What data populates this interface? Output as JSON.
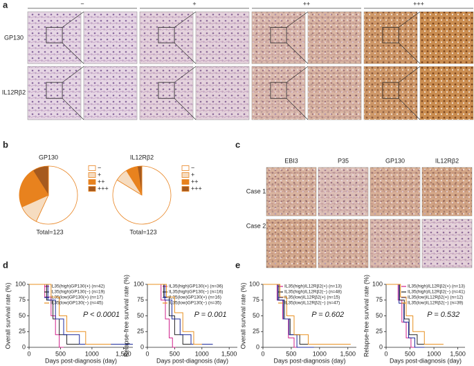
{
  "panel_labels": [
    "a",
    "b",
    "c",
    "d",
    "e"
  ],
  "panel_a": {
    "columns": [
      "−",
      "+",
      "++",
      "+++"
    ],
    "rows": [
      "GP130",
      "IL12Rβ2"
    ]
  },
  "panel_c": {
    "columns": [
      "EBI3",
      "P35",
      "GP130",
      "IL12Rβ2"
    ],
    "rows": [
      "Case 1",
      "Case 2"
    ]
  },
  "chart_data": [
    {
      "type": "pie",
      "title": "GP130",
      "categories": [
        "−",
        "+",
        "++",
        "+++"
      ],
      "values": [
        70,
        14,
        28,
        11
      ],
      "colors": [
        "#ffffff",
        "#f6dcc0",
        "#e8821e",
        "#a65a1e"
      ],
      "annotation": "Total=123",
      "legend": "right"
    },
    {
      "type": "pie",
      "title": "IL12Rβ2",
      "categories": [
        "−",
        "+",
        "++",
        "+++"
      ],
      "values": [
        103,
        9,
        8,
        3
      ],
      "colors": [
        "#ffffff",
        "#f6dcc0",
        "#e8821e",
        "#a65a1e"
      ],
      "annotation": "Total=123",
      "legend": "right"
    },
    {
      "type": "line",
      "ylabel": "Overall survival rate (%)",
      "xlabel": "Days post-diagnosis (day)",
      "annotation": "P < 0.0001",
      "xlim": [
        0,
        1650
      ],
      "xticks": [
        0,
        500,
        1000,
        {
          "value": 1500,
          "label": "1,500"
        }
      ],
      "ylim": [
        0,
        100
      ],
      "yticks": [
        0,
        25,
        50,
        75,
        100
      ],
      "legend": "upper right",
      "series": [
        {
          "name": "IL35(high)GP130(+) (n=42)",
          "color": "#d0208a",
          "x": [
            0,
            250,
            250,
            350,
            350,
            420,
            420,
            480,
            480,
            550
          ],
          "values": [
            100,
            100,
            80,
            80,
            50,
            50,
            20,
            20,
            0,
            0
          ]
        },
        {
          "name": "IL35(high)GP130(−) (n=19)",
          "color": "#222222",
          "x": [
            0,
            280,
            280,
            380,
            380,
            480,
            480,
            600,
            600,
            800
          ],
          "values": [
            100,
            100,
            75,
            75,
            45,
            45,
            20,
            20,
            5,
            5
          ]
        },
        {
          "name": "IL35(low)GP130(+) (n=17)",
          "color": "#1c2a9c",
          "x": [
            0,
            300,
            300,
            420,
            420,
            550,
            550,
            800,
            800,
            1650
          ],
          "values": [
            100,
            100,
            75,
            75,
            45,
            45,
            20,
            20,
            5,
            5
          ]
        },
        {
          "name": "IL35(low)GP130(−) (n=45)",
          "color": "#e89020",
          "x": [
            0,
            350,
            350,
            480,
            480,
            600,
            600,
            900,
            900,
            1300
          ],
          "values": [
            100,
            100,
            80,
            80,
            50,
            50,
            25,
            25,
            5,
            5
          ]
        }
      ]
    },
    {
      "type": "line",
      "ylabel": "Relapse-free survival rate (%)",
      "xlabel": "Days post-diagnosis (day)",
      "annotation": "P = 0.001",
      "xlim": [
        0,
        1650
      ],
      "xticks": [
        0,
        500,
        1000,
        {
          "value": 1500,
          "label": "1,500"
        }
      ],
      "ylim": [
        0,
        100
      ],
      "yticks": [
        0,
        25,
        50,
        75,
        100
      ],
      "legend": "upper right",
      "series": [
        {
          "name": "IL35(high)GP130(+) (n=36)",
          "color": "#d0208a",
          "x": [
            0,
            250,
            250,
            330,
            330,
            400,
            400,
            460,
            460,
            520
          ],
          "values": [
            100,
            100,
            75,
            75,
            45,
            45,
            15,
            15,
            0,
            0
          ]
        },
        {
          "name": "IL35(high)GP130(−) (n=16)",
          "color": "#222222",
          "x": [
            0,
            300,
            300,
            400,
            400,
            500,
            500,
            650,
            650,
            900
          ],
          "values": [
            100,
            100,
            80,
            80,
            50,
            50,
            20,
            20,
            5,
            5
          ]
        },
        {
          "name": "IL35(low)GP130(+) (n=16)",
          "color": "#1c2a9c",
          "x": [
            0,
            320,
            320,
            450,
            450,
            600,
            600,
            800,
            800,
            1200
          ],
          "values": [
            100,
            100,
            75,
            75,
            45,
            45,
            20,
            20,
            5,
            5
          ]
        },
        {
          "name": "IL35(low)GP130(−) (n=35)",
          "color": "#e89020",
          "x": [
            0,
            350,
            350,
            500,
            500,
            650,
            650,
            850,
            850,
            1000
          ],
          "values": [
            100,
            100,
            80,
            80,
            55,
            55,
            25,
            25,
            5,
            5
          ]
        }
      ]
    },
    {
      "type": "line",
      "ylabel": "Overall survival rate (%)",
      "xlabel": "Days post-diagnosis (day)",
      "annotation": "P = 0.602",
      "xlim": [
        0,
        1650
      ],
      "xticks": [
        0,
        500,
        1000,
        {
          "value": 1500,
          "label": "1,500"
        }
      ],
      "ylim": [
        0,
        100
      ],
      "yticks": [
        0,
        25,
        50,
        75,
        100
      ],
      "legend": "upper right",
      "series": [
        {
          "name": "IL35(high)IL12Rβ2(+) (n=13)",
          "color": "#d0208a",
          "x": [
            0,
            250,
            250,
            350,
            350,
            450,
            450,
            550,
            550,
            700
          ],
          "values": [
            100,
            100,
            75,
            75,
            45,
            45,
            15,
            15,
            0,
            0
          ]
        },
        {
          "name": "IL35(high)IL12Rβ2(−) (n=48)",
          "color": "#222222",
          "x": [
            0,
            280,
            280,
            380,
            380,
            480,
            480,
            650,
            650,
            1000
          ],
          "values": [
            100,
            100,
            75,
            75,
            45,
            45,
            20,
            20,
            5,
            5
          ]
        },
        {
          "name": "IL35(low)IL12Rβ2(+) (n=15)",
          "color": "#1c2a9c",
          "x": [
            0,
            260,
            260,
            360,
            360,
            460,
            460,
            600,
            600,
            900
          ],
          "values": [
            100,
            100,
            75,
            75,
            45,
            45,
            20,
            20,
            0,
            0
          ]
        },
        {
          "name": "IL35(low)IL12Rβ2(−) (n=47)",
          "color": "#e89020",
          "x": [
            0,
            300,
            300,
            420,
            420,
            550,
            550,
            800,
            800,
            1550
          ],
          "values": [
            100,
            100,
            80,
            80,
            50,
            50,
            20,
            20,
            5,
            5
          ]
        }
      ]
    },
    {
      "type": "line",
      "ylabel": "Relapse-free survival rate (%)",
      "xlabel": "Days post-diagnosis (day)",
      "annotation": "P = 0.532",
      "xlim": [
        0,
        1650
      ],
      "xticks": [
        0,
        500,
        1000,
        {
          "value": 1500,
          "label": "1,500"
        }
      ],
      "ylim": [
        0,
        100
      ],
      "yticks": [
        0,
        25,
        50,
        75,
        100
      ],
      "legend": "upper right",
      "series": [
        {
          "name": "IL35(high)IL12Rβ2(+) (n=13)",
          "color": "#d0208a",
          "x": [
            0,
            250,
            250,
            330,
            330,
            420,
            420,
            520,
            520,
            650
          ],
          "values": [
            100,
            100,
            75,
            75,
            40,
            40,
            15,
            15,
            0,
            0
          ]
        },
        {
          "name": "IL35(high)IL12Rβ2(−) (n=41)",
          "color": "#222222",
          "x": [
            0,
            280,
            280,
            380,
            380,
            480,
            480,
            650,
            650,
            900
          ],
          "values": [
            100,
            100,
            75,
            75,
            45,
            45,
            20,
            20,
            5,
            5
          ]
        },
        {
          "name": "IL35(low)IL12Rβ2(+) (n=12)",
          "color": "#1c2a9c",
          "x": [
            0,
            270,
            270,
            370,
            370,
            470,
            470,
            600,
            600,
            800
          ],
          "values": [
            100,
            100,
            70,
            70,
            40,
            40,
            15,
            15,
            0,
            0
          ]
        },
        {
          "name": "IL35(low)IL12Rβ2(−) (n=39)",
          "color": "#e89020",
          "x": [
            0,
            300,
            300,
            420,
            420,
            560,
            560,
            800,
            800,
            1200
          ],
          "values": [
            100,
            100,
            80,
            80,
            50,
            50,
            25,
            25,
            5,
            5
          ]
        }
      ]
    }
  ]
}
